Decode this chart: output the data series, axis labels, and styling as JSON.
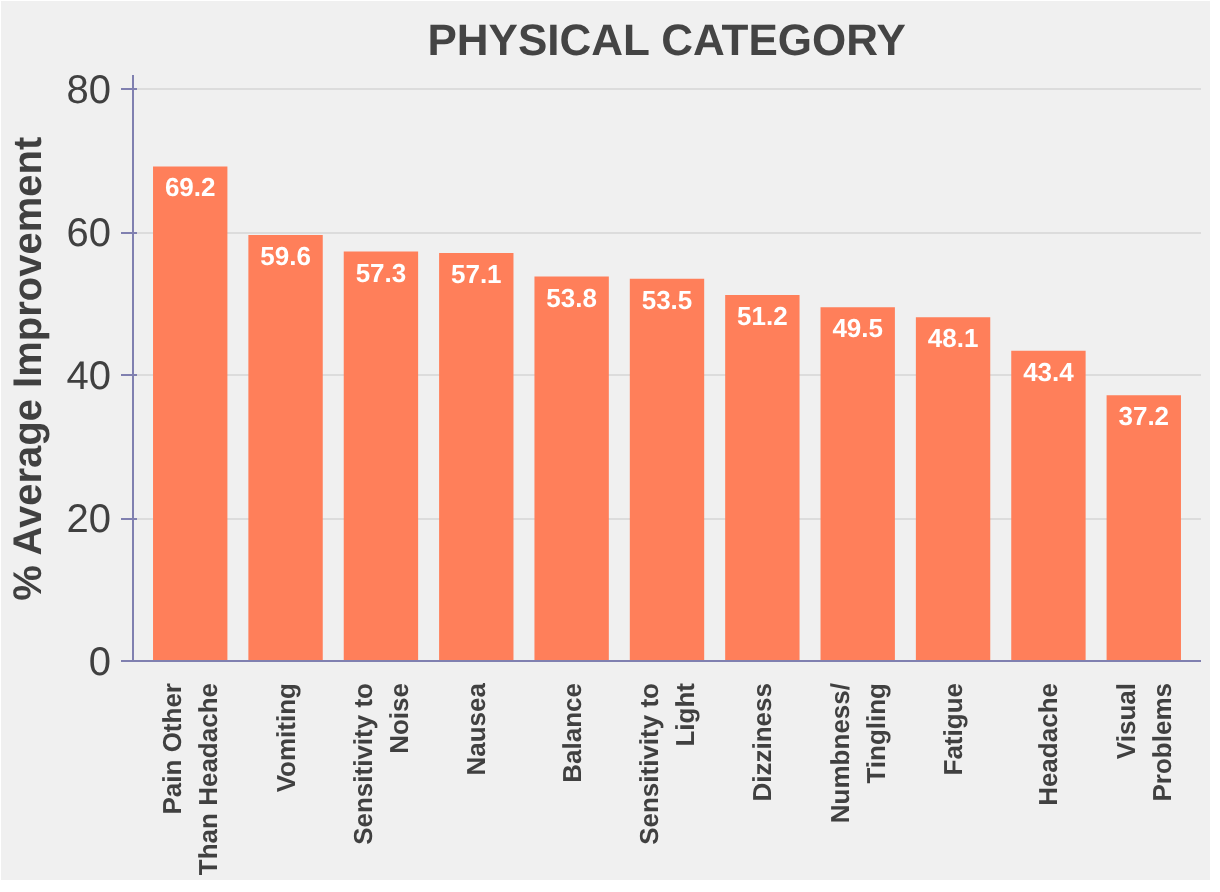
{
  "chart_data": {
    "type": "bar",
    "title": "PHYSICAL CATEGORY",
    "ylabel": "% Average Improvement",
    "categories": [
      "Pain Other\nThan Headache",
      "Vomiting",
      "Sensitivity to\nNoise",
      "Nausea",
      "Balance",
      "Sensitivity to\nLight",
      "Dizziness",
      "Numbness/\nTingling",
      "Fatigue",
      "Headache",
      "Visual\nProblems"
    ],
    "values": [
      69.2,
      59.6,
      57.3,
      57.1,
      53.8,
      53.5,
      51.2,
      49.5,
      48.1,
      43.4,
      37.2
    ],
    "color": "#ff7f5a",
    "data_labels": true,
    "ylim": [
      0,
      82
    ],
    "yticks": [
      0,
      20,
      40,
      60,
      80
    ],
    "grid": "y"
  }
}
